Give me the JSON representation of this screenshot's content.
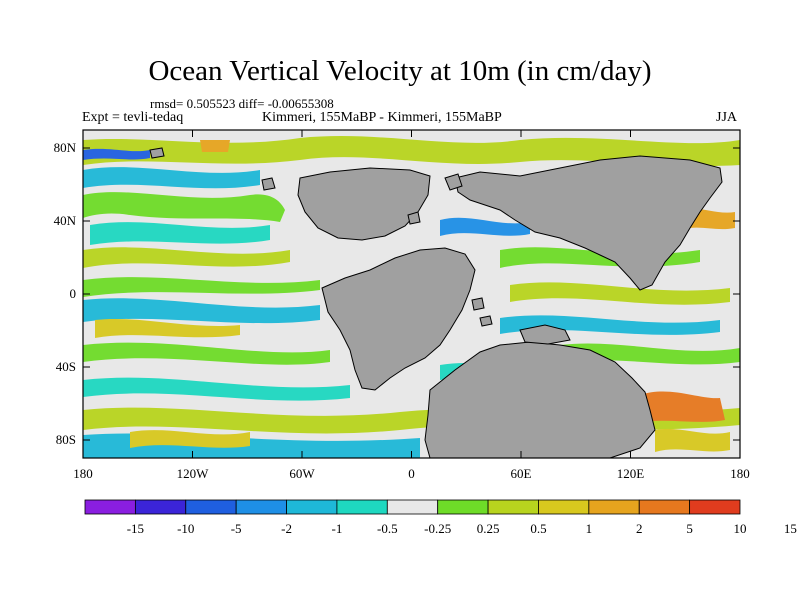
{
  "title": "Ocean Vertical Velocity at 10m (in cm/day)",
  "stats": "rmsd= 0.505523 diff= -0.00655308",
  "experiment": "Expt = tevli-tedaq",
  "comparison": "Kimmeri, 155MaBP - Kimmeri, 155MaBP",
  "season": "JJA",
  "colors": {
    "land": "#a0a0a0",
    "ocean_near_zero": "#e8e8e8",
    "palette": [
      "#8a1ee0",
      "#3b24d8",
      "#1f5fe0",
      "#1e8fe6",
      "#1eb8d8",
      "#1ed8c0",
      "#e8e8e8",
      "#6edc28",
      "#b8d41e",
      "#d8c81e",
      "#e6a41e",
      "#e6781e",
      "#e03c1e"
    ]
  },
  "lat_ticks": [
    "80N",
    "40N",
    "0",
    "40S",
    "80S"
  ],
  "lon_ticks": [
    "180",
    "120W",
    "60W",
    "0",
    "60E",
    "120E",
    "180"
  ],
  "colorbar_labels": [
    "-15",
    "-10",
    "-5",
    "-2",
    "-1",
    "-0.5",
    "-0.25",
    "0.25",
    "0.5",
    "1",
    "2",
    "5",
    "10",
    "15"
  ]
}
